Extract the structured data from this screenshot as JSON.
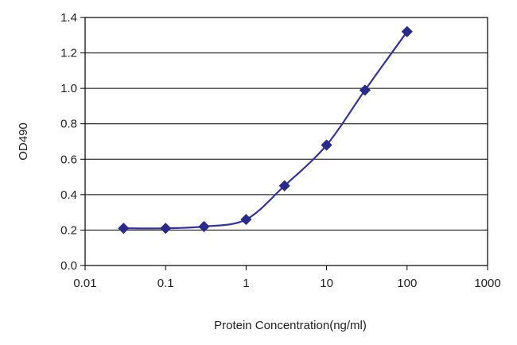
{
  "chart_data": {
    "type": "line",
    "xscale": "log",
    "xlabel": "Protein Concentration(ng/ml)",
    "ylabel": "OD490",
    "xlim": [
      0.01,
      1000
    ],
    "ylim": [
      0,
      1.4
    ],
    "x_ticks": [
      "0.01",
      "0.1",
      "1",
      "10",
      "100",
      "1000"
    ],
    "y_ticks": [
      "0.0",
      "0.2",
      "0.4",
      "0.6",
      "0.8",
      "1.0",
      "1.2",
      "1.4"
    ],
    "grid": "horizontal",
    "marker": "diamond",
    "line_color": "#33339a",
    "marker_color": "#2a2a8a",
    "series": [
      {
        "x": [
          0.03,
          0.1,
          0.3,
          1,
          3,
          10,
          30,
          100
        ],
        "y": [
          0.21,
          0.21,
          0.22,
          0.26,
          0.45,
          0.68,
          0.99,
          1.32
        ]
      }
    ]
  }
}
